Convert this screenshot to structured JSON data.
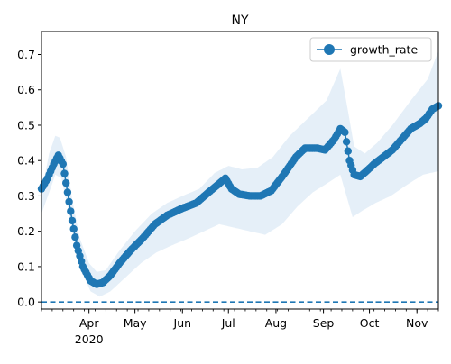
{
  "chart_data": {
    "type": "line",
    "title": "NY",
    "xlabel": "",
    "ylabel": "",
    "xlim": [
      "2020-03-01",
      "2020-11-15"
    ],
    "ylim": [
      -0.02,
      0.765
    ],
    "x_ticks": [
      {
        "date": "2020-04-01",
        "label": "Apr"
      },
      {
        "date": "2020-05-01",
        "label": "May"
      },
      {
        "date": "2020-06-01",
        "label": "Jun"
      },
      {
        "date": "2020-07-01",
        "label": "Jul"
      },
      {
        "date": "2020-08-01",
        "label": "Aug"
      },
      {
        "date": "2020-09-01",
        "label": "Sep"
      },
      {
        "date": "2020-10-01",
        "label": "Oct"
      },
      {
        "date": "2020-11-01",
        "label": "Nov"
      }
    ],
    "year_label": "2020",
    "y_ticks": [
      0.0,
      0.1,
      0.2,
      0.3,
      0.4,
      0.5,
      0.6,
      0.7
    ],
    "y_tick_labels": [
      "0.0",
      "0.1",
      "0.2",
      "0.3",
      "0.4",
      "0.5",
      "0.6",
      "0.7"
    ],
    "grid": false,
    "legend": {
      "position": "top-right",
      "entries": [
        "growth_rate"
      ]
    },
    "reference_line": {
      "y": 0.0,
      "style": "dashed"
    },
    "colors": {
      "series": "#1f77b4",
      "band": "#dce9f5"
    },
    "series": [
      {
        "name": "growth_rate",
        "marker": "circle",
        "anchors": [
          [
            "2020-03-01",
            0.32
          ],
          [
            "2020-03-05",
            0.35
          ],
          [
            "2020-03-09",
            0.39
          ],
          [
            "2020-03-12",
            0.415
          ],
          [
            "2020-03-15",
            0.39
          ],
          [
            "2020-03-18",
            0.31
          ],
          [
            "2020-03-21",
            0.23
          ],
          [
            "2020-03-24",
            0.16
          ],
          [
            "2020-03-28",
            0.1
          ],
          [
            "2020-04-02",
            0.06
          ],
          [
            "2020-04-06",
            0.05
          ],
          [
            "2020-04-10",
            0.055
          ],
          [
            "2020-04-15",
            0.075
          ],
          [
            "2020-04-21",
            0.11
          ],
          [
            "2020-04-28",
            0.145
          ],
          [
            "2020-05-06",
            0.18
          ],
          [
            "2020-05-14",
            0.22
          ],
          [
            "2020-05-22",
            0.245
          ],
          [
            "2020-06-01",
            0.265
          ],
          [
            "2020-06-10",
            0.28
          ],
          [
            "2020-06-18",
            0.31
          ],
          [
            "2020-06-25",
            0.335
          ],
          [
            "2020-06-29",
            0.35
          ],
          [
            "2020-07-03",
            0.32
          ],
          [
            "2020-07-08",
            0.305
          ],
          [
            "2020-07-15",
            0.3
          ],
          [
            "2020-07-22",
            0.3
          ],
          [
            "2020-07-29",
            0.315
          ],
          [
            "2020-08-06",
            0.36
          ],
          [
            "2020-08-14",
            0.41
          ],
          [
            "2020-08-20",
            0.435
          ],
          [
            "2020-08-28",
            0.435
          ],
          [
            "2020-09-02",
            0.43
          ],
          [
            "2020-09-08",
            0.46
          ],
          [
            "2020-09-12",
            0.49
          ],
          [
            "2020-09-15",
            0.48
          ],
          [
            "2020-09-18",
            0.4
          ],
          [
            "2020-09-21",
            0.36
          ],
          [
            "2020-09-25",
            0.355
          ],
          [
            "2020-09-29",
            0.37
          ],
          [
            "2020-10-04",
            0.39
          ],
          [
            "2020-10-10",
            0.41
          ],
          [
            "2020-10-16",
            0.43
          ],
          [
            "2020-10-22",
            0.46
          ],
          [
            "2020-10-28",
            0.49
          ],
          [
            "2020-11-03",
            0.505
          ],
          [
            "2020-11-07",
            0.52
          ],
          [
            "2020-11-11",
            0.545
          ],
          [
            "2020-11-15",
            0.555
          ]
        ],
        "band_upper": [
          [
            "2020-03-01",
            0.31
          ],
          [
            "2020-03-06",
            0.42
          ],
          [
            "2020-03-10",
            0.47
          ],
          [
            "2020-03-13",
            0.465
          ],
          [
            "2020-03-17",
            0.41
          ],
          [
            "2020-03-21",
            0.29
          ],
          [
            "2020-03-26",
            0.18
          ],
          [
            "2020-04-01",
            0.11
          ],
          [
            "2020-04-06",
            0.085
          ],
          [
            "2020-04-12",
            0.09
          ],
          [
            "2020-04-20",
            0.14
          ],
          [
            "2020-05-01",
            0.2
          ],
          [
            "2020-05-12",
            0.25
          ],
          [
            "2020-05-22",
            0.28
          ],
          [
            "2020-06-01",
            0.3
          ],
          [
            "2020-06-12",
            0.32
          ],
          [
            "2020-06-22",
            0.365
          ],
          [
            "2020-07-01",
            0.385
          ],
          [
            "2020-07-10",
            0.375
          ],
          [
            "2020-07-20",
            0.38
          ],
          [
            "2020-07-30",
            0.41
          ],
          [
            "2020-08-10",
            0.47
          ],
          [
            "2020-08-22",
            0.52
          ],
          [
            "2020-09-03",
            0.57
          ],
          [
            "2020-09-12",
            0.66
          ],
          [
            "2020-09-17",
            0.54
          ],
          [
            "2020-09-21",
            0.44
          ],
          [
            "2020-09-28",
            0.42
          ],
          [
            "2020-10-06",
            0.45
          ],
          [
            "2020-10-16",
            0.5
          ],
          [
            "2020-10-28",
            0.57
          ],
          [
            "2020-11-08",
            0.63
          ],
          [
            "2020-11-15",
            0.71
          ]
        ],
        "band_lower": [
          [
            "2020-03-01",
            0.25
          ],
          [
            "2020-03-06",
            0.31
          ],
          [
            "2020-03-10",
            0.36
          ],
          [
            "2020-03-14",
            0.35
          ],
          [
            "2020-03-18",
            0.27
          ],
          [
            "2020-03-22",
            0.18
          ],
          [
            "2020-03-27",
            0.09
          ],
          [
            "2020-04-02",
            0.03
          ],
          [
            "2020-04-08",
            0.015
          ],
          [
            "2020-04-15",
            0.03
          ],
          [
            "2020-04-25",
            0.07
          ],
          [
            "2020-05-05",
            0.11
          ],
          [
            "2020-05-15",
            0.14
          ],
          [
            "2020-05-25",
            0.16
          ],
          [
            "2020-06-05",
            0.18
          ],
          [
            "2020-06-15",
            0.2
          ],
          [
            "2020-06-25",
            0.22
          ],
          [
            "2020-07-05",
            0.21
          ],
          [
            "2020-07-15",
            0.2
          ],
          [
            "2020-07-25",
            0.19
          ],
          [
            "2020-08-05",
            0.22
          ],
          [
            "2020-08-15",
            0.27
          ],
          [
            "2020-08-25",
            0.31
          ],
          [
            "2020-09-05",
            0.34
          ],
          [
            "2020-09-12",
            0.36
          ],
          [
            "2020-09-16",
            0.3
          ],
          [
            "2020-09-20",
            0.24
          ],
          [
            "2020-09-27",
            0.26
          ],
          [
            "2020-10-05",
            0.28
          ],
          [
            "2020-10-15",
            0.3
          ],
          [
            "2020-10-25",
            0.33
          ],
          [
            "2020-11-05",
            0.36
          ],
          [
            "2020-11-15",
            0.37
          ]
        ]
      }
    ]
  }
}
